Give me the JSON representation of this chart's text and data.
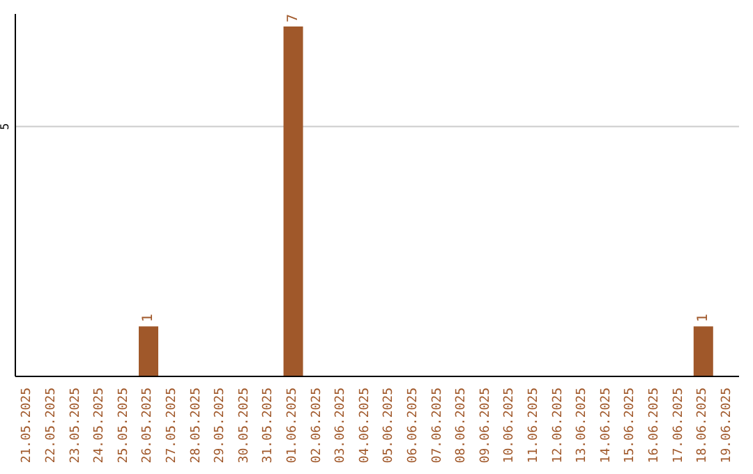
{
  "chart_data": {
    "type": "bar",
    "categories": [
      "21.05.2025",
      "22.05.2025",
      "23.05.2025",
      "24.05.2025",
      "25.05.2025",
      "26.05.2025",
      "27.05.2025",
      "28.05.2025",
      "29.05.2025",
      "30.05.2025",
      "31.05.2025",
      "01.06.2025",
      "02.06.2025",
      "03.06.2025",
      "04.06.2025",
      "05.06.2025",
      "06.06.2025",
      "07.06.2025",
      "08.06.2025",
      "09.06.2025",
      "10.06.2025",
      "11.06.2025",
      "12.06.2025",
      "13.06.2025",
      "14.06.2025",
      "15.06.2025",
      "16.06.2025",
      "17.06.2025",
      "18.06.2025",
      "19.06.2025"
    ],
    "values": [
      0,
      0,
      0,
      0,
      0,
      1,
      0,
      0,
      0,
      0,
      0,
      7,
      0,
      0,
      0,
      0,
      0,
      0,
      0,
      0,
      0,
      0,
      0,
      0,
      0,
      0,
      0,
      0,
      1,
      0
    ],
    "value_labels": [
      null,
      null,
      null,
      null,
      null,
      "1",
      null,
      null,
      null,
      null,
      null,
      "7",
      null,
      null,
      null,
      null,
      null,
      null,
      null,
      null,
      null,
      null,
      null,
      null,
      null,
      null,
      null,
      null,
      "1",
      null
    ],
    "color": "#a0582a",
    "ylim": [
      0,
      7.25
    ],
    "yticks": [
      5
    ],
    "grid": "y",
    "legend": false
  }
}
